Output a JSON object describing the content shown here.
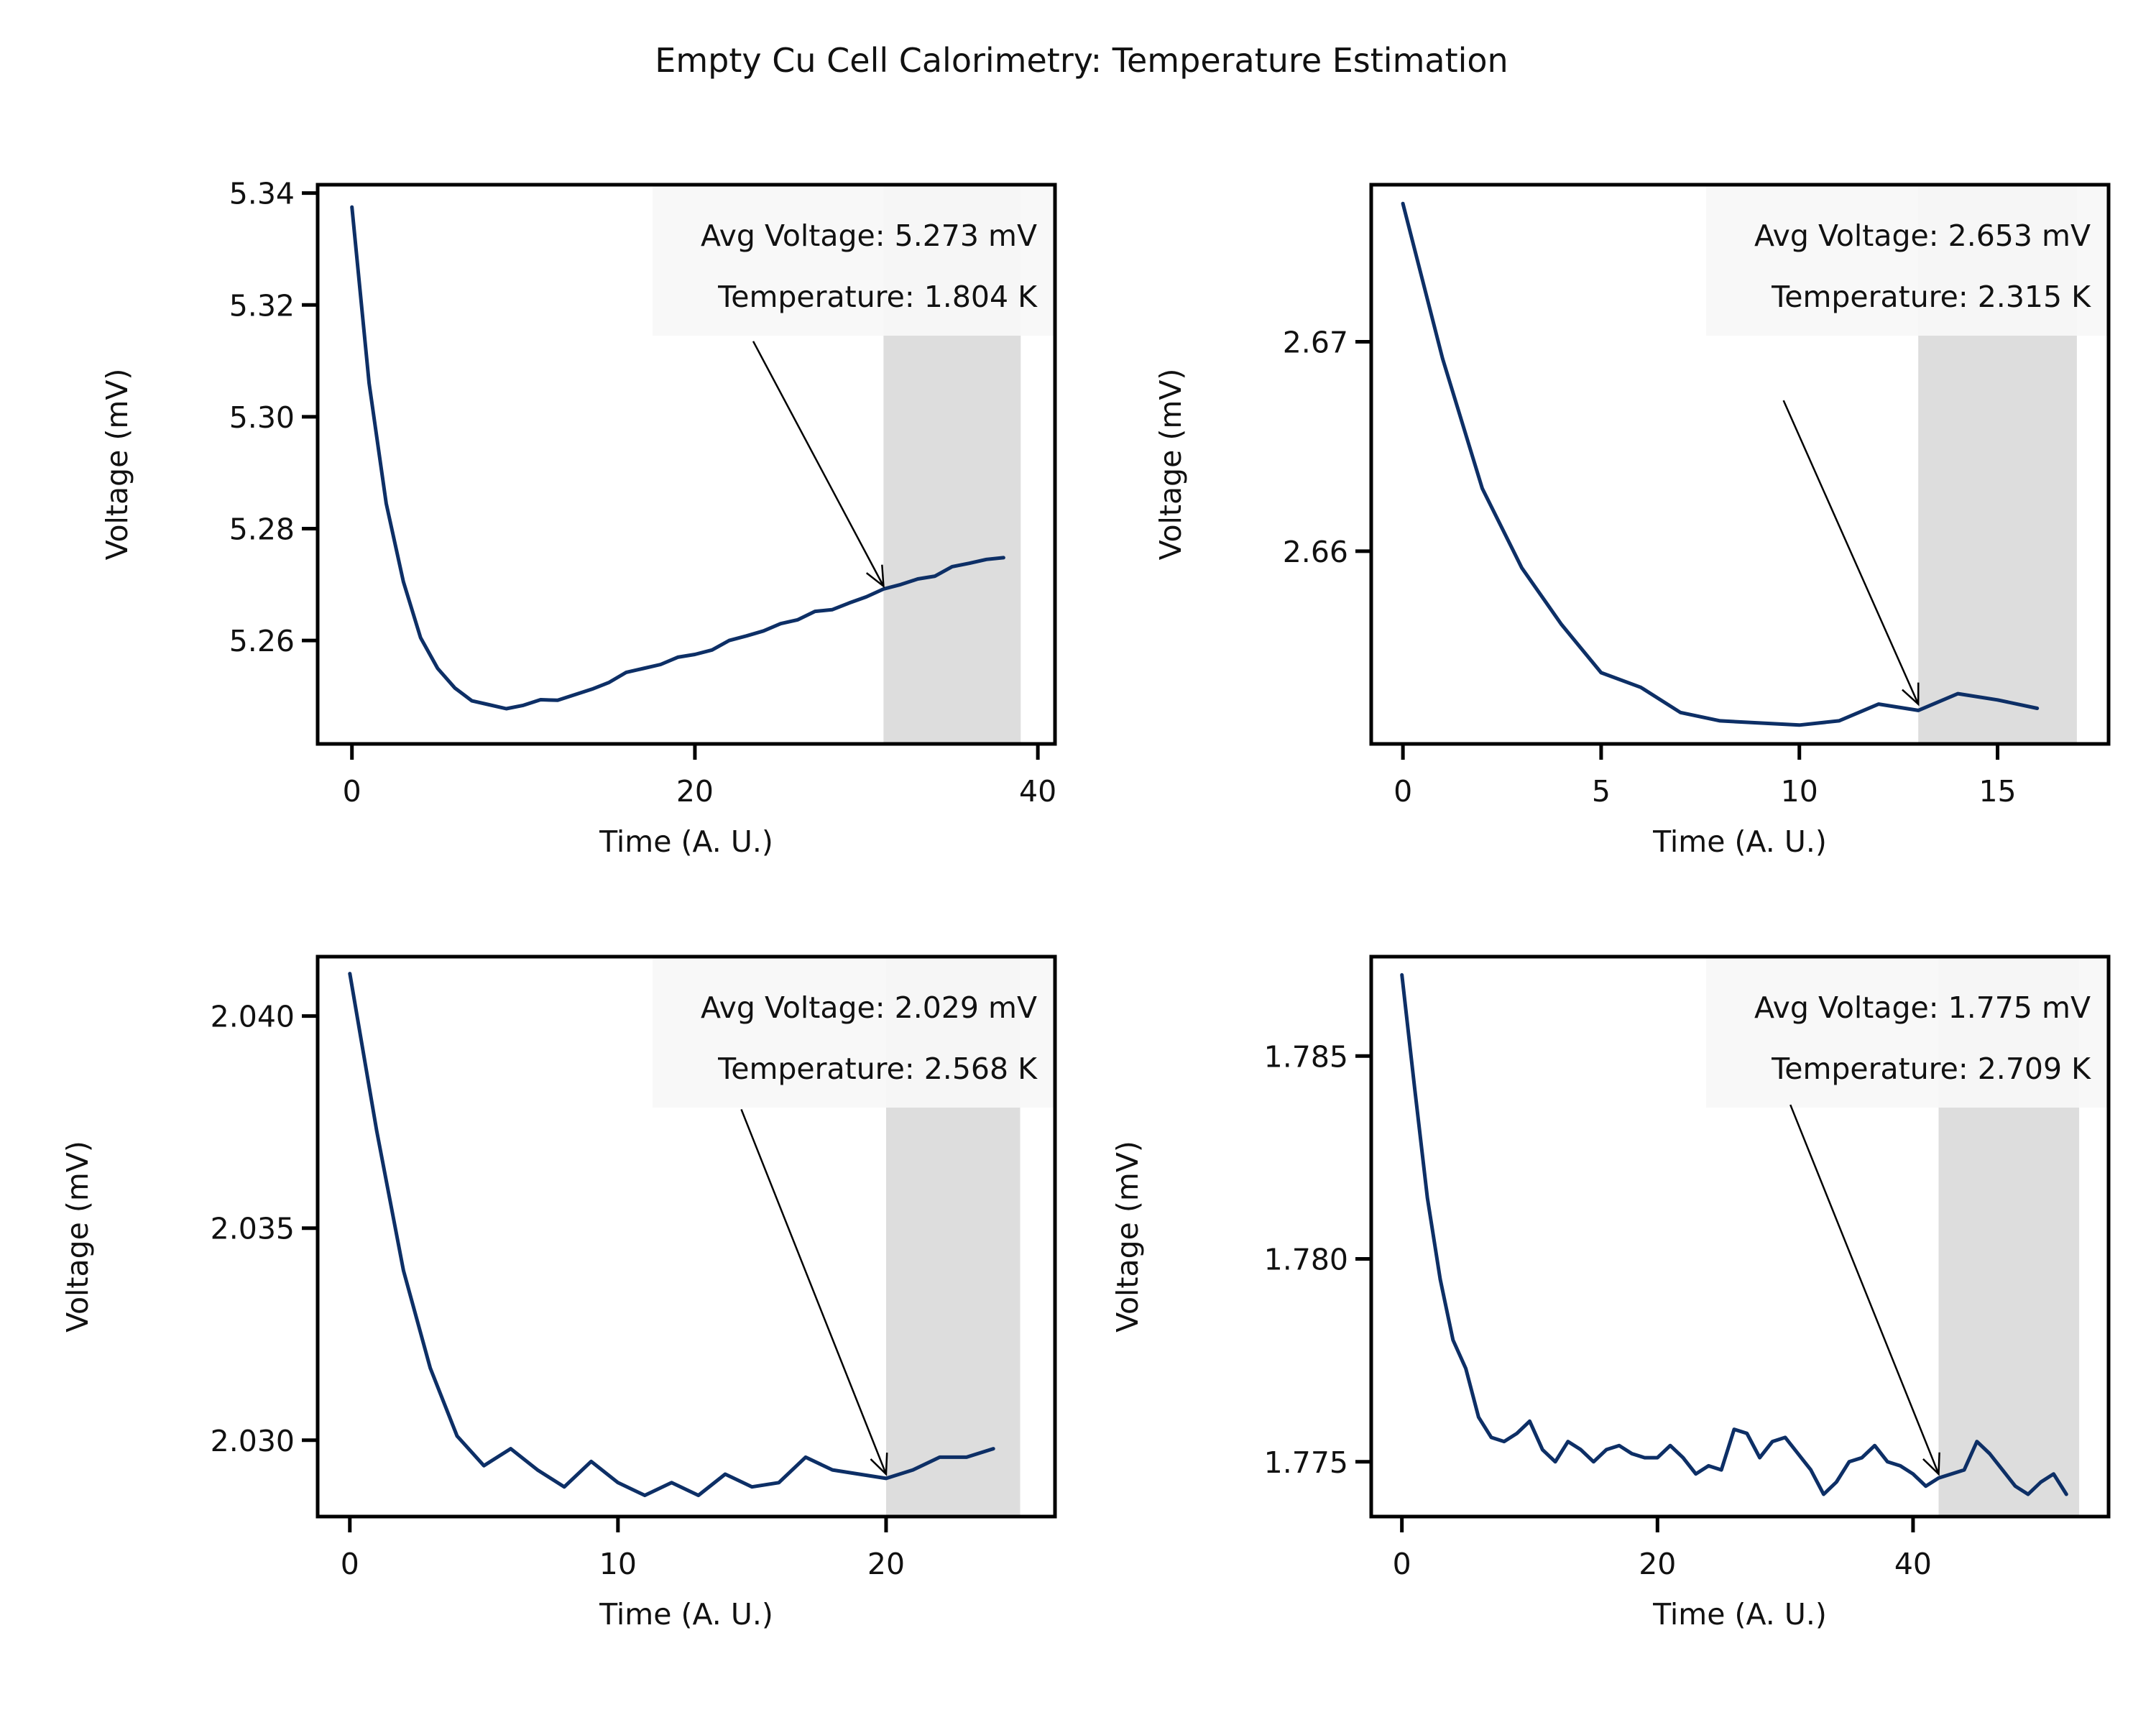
{
  "figure": {
    "title": "Empty Cu Cell Calorimetry: Temperature Estimation"
  },
  "colors": {
    "line": "#0d2f66",
    "shade": "#dddddd",
    "annotation_box": "#f7f7f7",
    "frame": "#000000"
  },
  "chart_data": [
    {
      "type": "line",
      "xlabel": "Time (A. U.)",
      "ylabel": "Voltage (mV)",
      "xlim": [
        -2,
        41
      ],
      "ylim": [
        5.2415,
        5.3415
      ],
      "xticks": [
        0,
        20,
        40
      ],
      "xtick_labels": [
        "0",
        "20",
        "40"
      ],
      "yticks": [
        5.26,
        5.28,
        5.3,
        5.32,
        5.34
      ],
      "ytick_labels": [
        "5.26",
        "5.28",
        "5.30",
        "5.32",
        "5.34"
      ],
      "x": [
        0,
        1,
        2,
        3,
        4,
        5,
        6,
        7,
        8,
        9,
        10,
        11,
        12,
        13,
        14,
        15,
        16,
        17,
        18,
        19,
        20,
        21,
        22,
        23,
        24,
        25,
        26,
        27,
        28,
        29,
        30,
        31,
        32,
        33,
        34,
        35,
        36,
        37,
        38
      ],
      "y": [
        5.3375,
        5.306,
        5.2845,
        5.2705,
        5.2605,
        5.255,
        5.2515,
        5.2492,
        5.2485,
        5.2478,
        5.2484,
        5.2494,
        5.2493,
        5.2503,
        5.2513,
        5.2525,
        5.2543,
        5.255,
        5.2557,
        5.257,
        5.2575,
        5.2583,
        5.26,
        5.2608,
        5.2617,
        5.263,
        5.2637,
        5.2652,
        5.2655,
        5.2667,
        5.2678,
        5.2692,
        5.27,
        5.271,
        5.2715,
        5.2732,
        5.2738,
        5.2745,
        5.2748
      ],
      "shaded_region": [
        31,
        39
      ],
      "annotation": {
        "line1": "Avg Voltage: 5.273 mV",
        "line2": "Temperature: 1.804 K",
        "arrow_target": [
          31,
          5.2697
        ],
        "arrow_tail": [
          23.4,
          5.3135
        ]
      }
    },
    {
      "type": "line",
      "xlabel": "Time (A. U.)",
      "ylabel": "Voltage (mV)",
      "xlim": [
        -0.8,
        17.8
      ],
      "ylim": [
        2.6508,
        2.6775
      ],
      "xticks": [
        0,
        5,
        10,
        15
      ],
      "xtick_labels": [
        "0",
        "5",
        "10",
        "15"
      ],
      "yticks": [
        2.66,
        2.67
      ],
      "ytick_labels": [
        "2.66",
        "2.67"
      ],
      "x": [
        0,
        1,
        2,
        3,
        4,
        5,
        6,
        7,
        8,
        9,
        10,
        11,
        12,
        13,
        14,
        15,
        16
      ],
      "y": [
        2.6766,
        2.6692,
        2.663,
        2.6592,
        2.6565,
        2.6542,
        2.6535,
        2.6523,
        2.6519,
        2.6518,
        2.6517,
        2.6519,
        2.6527,
        2.6524,
        2.6532,
        2.6529,
        2.6525
      ],
      "shaded_region": [
        13,
        17
      ],
      "annotation": {
        "line1": "Avg Voltage: 2.653 mV",
        "line2": "Temperature: 2.315 K",
        "arrow_target": [
          13,
          2.6527
        ],
        "arrow_tail": [
          9.6,
          2.6672
        ]
      }
    },
    {
      "type": "line",
      "xlabel": "Time (A. U.)",
      "ylabel": "Voltage (mV)",
      "xlim": [
        -1.2,
        26.3
      ],
      "ylim": [
        2.0282,
        2.0414
      ],
      "xticks": [
        0,
        10,
        20
      ],
      "xtick_labels": [
        "0",
        "10",
        "20"
      ],
      "yticks": [
        2.03,
        2.035,
        2.04
      ],
      "ytick_labels": [
        "2.030",
        "2.035",
        "2.040"
      ],
      "x": [
        0,
        1,
        2,
        3,
        4,
        5,
        6,
        7,
        8,
        9,
        10,
        11,
        12,
        13,
        14,
        15,
        16,
        17,
        18,
        19,
        20,
        21,
        22,
        23,
        24
      ],
      "y": [
        2.041,
        2.0373,
        2.034,
        2.0317,
        2.0301,
        2.0294,
        2.0298,
        2.0293,
        2.0289,
        2.0295,
        2.029,
        2.0287,
        2.029,
        2.0287,
        2.0292,
        2.0289,
        2.029,
        2.0296,
        2.0293,
        2.0292,
        2.0291,
        2.0293,
        2.0296,
        2.0296,
        2.0298
      ],
      "shaded_region": [
        20,
        25
      ],
      "annotation": {
        "line1": "Avg Voltage: 2.029 mV",
        "line2": "Temperature: 2.568 K",
        "arrow_target": [
          20,
          2.0292
        ],
        "arrow_tail": [
          14.6,
          2.0378
        ]
      }
    },
    {
      "type": "line",
      "xlabel": "Time (A. U.)",
      "ylabel": "Voltage (mV)",
      "xlim": [
        -2.4,
        55.3
      ],
      "ylim": [
        1.77365,
        1.78745
      ],
      "xticks": [
        0,
        20,
        40
      ],
      "xtick_labels": [
        "0",
        "20",
        "40"
      ],
      "yticks": [
        1.775,
        1.78,
        1.785
      ],
      "ytick_labels": [
        "1.775",
        "1.780",
        "1.785"
      ],
      "x": [
        0,
        1,
        2,
        3,
        4,
        5,
        6,
        7,
        8,
        9,
        10,
        11,
        12,
        13,
        14,
        15,
        16,
        17,
        18,
        19,
        20,
        21,
        22,
        23,
        24,
        25,
        26,
        27,
        28,
        29,
        30,
        31,
        32,
        33,
        34,
        35,
        36,
        37,
        38,
        39,
        40,
        41,
        42,
        43,
        44,
        45,
        46,
        47,
        48,
        49,
        50,
        51,
        52
      ],
      "y": [
        1.787,
        1.7842,
        1.7815,
        1.7795,
        1.778,
        1.7773,
        1.7761,
        1.7756,
        1.7755,
        1.7757,
        1.776,
        1.7753,
        1.775,
        1.7755,
        1.7753,
        1.775,
        1.7753,
        1.7754,
        1.7752,
        1.7751,
        1.7751,
        1.7754,
        1.7751,
        1.7747,
        1.7749,
        1.7748,
        1.7758,
        1.7757,
        1.7751,
        1.7755,
        1.7756,
        1.7752,
        1.7748,
        1.7742,
        1.7745,
        1.775,
        1.7751,
        1.7754,
        1.775,
        1.7749,
        1.7747,
        1.7744,
        1.7746,
        1.7747,
        1.7748,
        1.7755,
        1.7752,
        1.7748,
        1.7744,
        1.7742,
        1.7745,
        1.7747,
        1.7742
      ],
      "shaded_region": [
        42,
        53
      ],
      "annotation": {
        "line1": "Avg Voltage: 1.775 mV",
        "line2": "Temperature: 2.709 K",
        "arrow_target": [
          42,
          1.7747
        ],
        "arrow_tail": [
          30.4,
          1.7838
        ]
      }
    }
  ]
}
